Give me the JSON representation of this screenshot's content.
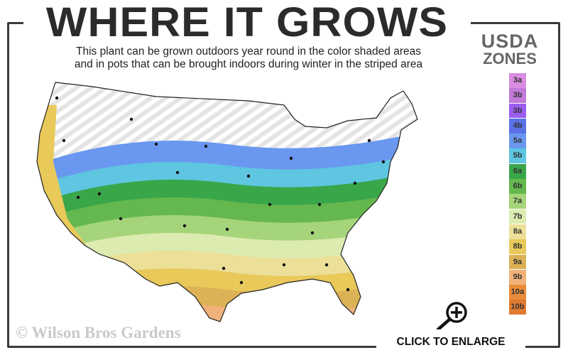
{
  "header": {
    "title": "WHERE IT GROWS",
    "subtitle_line1": "This plant can be grown outdoors year round in the color shaded areas",
    "subtitle_line2": "and in pots that can be brought indoors during winter in the striped area"
  },
  "legend": {
    "title_line1": "USDA",
    "title_line2": "ZONES",
    "zones": [
      {
        "label": "3a",
        "color": "#d98ce0"
      },
      {
        "label": "3b",
        "color": "#c27ad8"
      },
      {
        "label": "3b",
        "color": "#9b5cf0"
      },
      {
        "label": "4b",
        "color": "#5a72e6"
      },
      {
        "label": "5a",
        "color": "#6a98f0"
      },
      {
        "label": "5b",
        "color": "#5ec6e0"
      },
      {
        "label": "6a",
        "color": "#3aa64a"
      },
      {
        "label": "6b",
        "color": "#64b84e"
      },
      {
        "label": "7a",
        "color": "#a6d47a"
      },
      {
        "label": "7b",
        "color": "#dcebb0"
      },
      {
        "label": "8a",
        "color": "#ecdf98"
      },
      {
        "label": "8b",
        "color": "#e8c95a"
      },
      {
        "label": "9a",
        "color": "#dcb256"
      },
      {
        "label": "9b",
        "color": "#f1b27a"
      },
      {
        "label": "10a",
        "color": "#e98c3a"
      },
      {
        "label": "10b",
        "color": "#e07a30"
      }
    ]
  },
  "footer": {
    "copyright": "© Wilson Bros Gardens",
    "enlarge_label": "CLICK TO ENLARGE",
    "enlarge_icon": "magnifier-plus-icon"
  }
}
